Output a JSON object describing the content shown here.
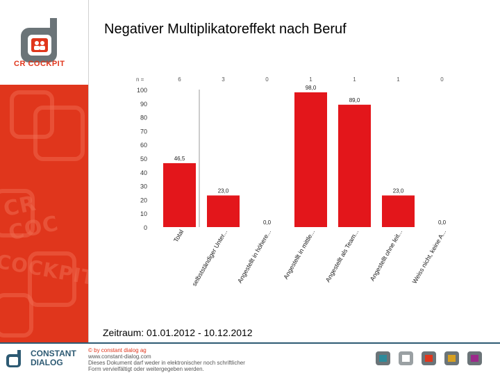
{
  "title": "Negativer Multiplikatoreffekt nach Beruf",
  "brand": {
    "logo_text": "CR COCKPIT",
    "company_line1": "CONSTANT",
    "company_line2": "DIALOG"
  },
  "footer": {
    "line1": "© by constant dialog ag",
    "line2": "www.constant-dialog.com",
    "line3": "Dieses Dokument darf weder in elektronischer noch schriftlicher",
    "line4": "Form vervielfältigt oder weitergegeben werden."
  },
  "period": "Zeitraum: 01.01.2012 - 10.12.2012",
  "colors": {
    "accent": "#e0361c",
    "bar": "#e3161b",
    "navy": "#2d5a73"
  },
  "chart_data": {
    "type": "bar",
    "n_label": "n =",
    "n": [
      "6",
      "3",
      "0",
      "1",
      "1",
      "1",
      "0"
    ],
    "categories": [
      "Total",
      "selbstständiger Unter...",
      "Angestellt in höhere...",
      "Angestellt in mittle...",
      "Angestellt als Team...",
      "Angestellt ohne leit...",
      "Weiss nicht, keine A..."
    ],
    "values": [
      46.5,
      23.0,
      0.0,
      98.0,
      89.0,
      23.0,
      0.0
    ],
    "value_labels": [
      "46,5",
      "23,0",
      "0,0",
      "98,0",
      "89,0",
      "23,0",
      "0,0"
    ],
    "yticks": [
      "0",
      "10",
      "20",
      "30",
      "40",
      "50",
      "60",
      "70",
      "80",
      "90",
      "100"
    ],
    "ylim": [
      0,
      100
    ],
    "grid": false
  }
}
